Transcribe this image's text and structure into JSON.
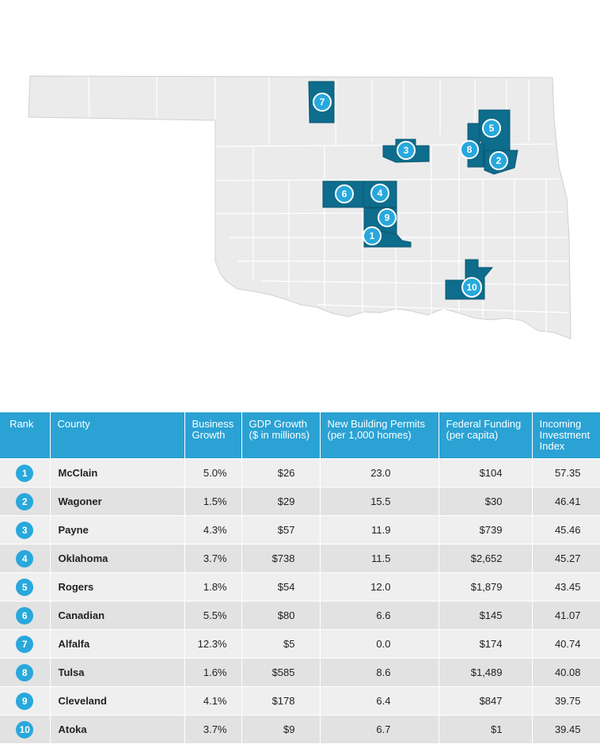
{
  "map": {
    "markers": [
      {
        "rank": "1"
      },
      {
        "rank": "2"
      },
      {
        "rank": "3"
      },
      {
        "rank": "4"
      },
      {
        "rank": "5"
      },
      {
        "rank": "6"
      },
      {
        "rank": "7"
      },
      {
        "rank": "8"
      },
      {
        "rank": "9"
      },
      {
        "rank": "10"
      }
    ]
  },
  "table": {
    "headers": {
      "rank": "Rank",
      "county": "County",
      "business_growth": [
        "Business",
        "Growth"
      ],
      "gdp_growth": [
        "GDP Growth",
        "($ in millions)"
      ],
      "permits": [
        "New Building Permits",
        "(per 1,000 homes)"
      ],
      "funding": [
        "Federal Funding",
        "(per capita)"
      ],
      "investment": [
        "Incoming",
        "Investment",
        "Index"
      ]
    },
    "rows": [
      {
        "rank": "1",
        "county": "McClain",
        "business_growth": "5.0%",
        "gdp_growth": "$26",
        "permits": "23.0",
        "funding": "$104",
        "index": "57.35"
      },
      {
        "rank": "2",
        "county": "Wagoner",
        "business_growth": "1.5%",
        "gdp_growth": "$29",
        "permits": "15.5",
        "funding": "$30",
        "index": "46.41"
      },
      {
        "rank": "3",
        "county": "Payne",
        "business_growth": "4.3%",
        "gdp_growth": "$57",
        "permits": "11.9",
        "funding": "$739",
        "index": "45.46"
      },
      {
        "rank": "4",
        "county": "Oklahoma",
        "business_growth": "3.7%",
        "gdp_growth": "$738",
        "permits": "11.5",
        "funding": "$2,652",
        "index": "45.27"
      },
      {
        "rank": "5",
        "county": "Rogers",
        "business_growth": "1.8%",
        "gdp_growth": "$54",
        "permits": "12.0",
        "funding": "$1,879",
        "index": "43.45"
      },
      {
        "rank": "6",
        "county": "Canadian",
        "business_growth": "5.5%",
        "gdp_growth": "$80",
        "permits": "6.6",
        "funding": "$145",
        "index": "41.07"
      },
      {
        "rank": "7",
        "county": "Alfalfa",
        "business_growth": "12.3%",
        "gdp_growth": "$5",
        "permits": "0.0",
        "funding": "$174",
        "index": "40.74"
      },
      {
        "rank": "8",
        "county": "Tulsa",
        "business_growth": "1.6%",
        "gdp_growth": "$585",
        "permits": "8.6",
        "funding": "$1,489",
        "index": "40.08"
      },
      {
        "rank": "9",
        "county": "Cleveland",
        "business_growth": "4.1%",
        "gdp_growth": "$178",
        "permits": "6.4",
        "funding": "$847",
        "index": "39.75"
      },
      {
        "rank": "10",
        "county": "Atoka",
        "business_growth": "3.7%",
        "gdp_growth": "$9",
        "permits": "6.7",
        "funding": "$1",
        "index": "39.45"
      }
    ]
  },
  "colors": {
    "highlight": "#0e6c8c",
    "marker": "#28a8dc",
    "header": "#2aa2d4",
    "row_light": "#efefef",
    "row_dark": "#e2e2e2"
  }
}
